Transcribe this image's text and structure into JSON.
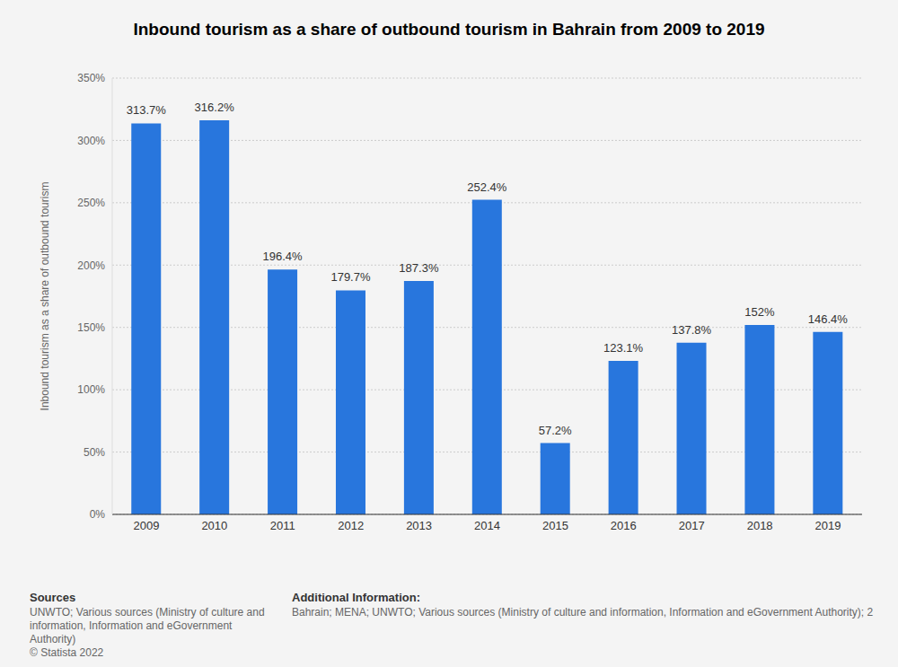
{
  "chart_data": {
    "type": "bar",
    "title": "Inbound tourism as a share of outbound tourism in Bahrain from 2009 to 2019",
    "y_label": "Inbound tourism as a share of outbound tourism",
    "categories": [
      "2009",
      "2010",
      "2011",
      "2012",
      "2013",
      "2014",
      "2015",
      "2016",
      "2017",
      "2018",
      "2019"
    ],
    "values": [
      313.7,
      316.2,
      196.4,
      179.7,
      187.3,
      252.4,
      57.2,
      123.1,
      137.8,
      152,
      146.4
    ],
    "value_labels": [
      "313.7%",
      "316.2%",
      "196.4%",
      "179.7%",
      "187.3%",
      "252.4%",
      "57.2%",
      "123.1%",
      "137.8%",
      "152%",
      "146.4%"
    ],
    "color": "#2876dd",
    "ylim": [
      0,
      350
    ],
    "yticks": [
      {
        "value": 0,
        "label": "0%"
      },
      {
        "value": 50,
        "label": "50%"
      },
      {
        "value": 100,
        "label": "100%"
      },
      {
        "value": 150,
        "label": "150%"
      },
      {
        "value": 200,
        "label": "200%"
      },
      {
        "value": 250,
        "label": "250%"
      },
      {
        "value": 300,
        "label": "300%"
      },
      {
        "value": 350,
        "label": "350%"
      }
    ],
    "grid": true,
    "data_labels": true,
    "sources_heading": "Sources",
    "sources": "UNWTO; Various sources (Ministry of culture and information, Information and eGovernment Authority)",
    "copyright": "© Statista 2022",
    "additional_heading": "Additional Information:",
    "additional": "Bahrain; MENA; UNWTO; Various sources (Ministry of culture and information, Information and eGovernment Authority); 2"
  }
}
